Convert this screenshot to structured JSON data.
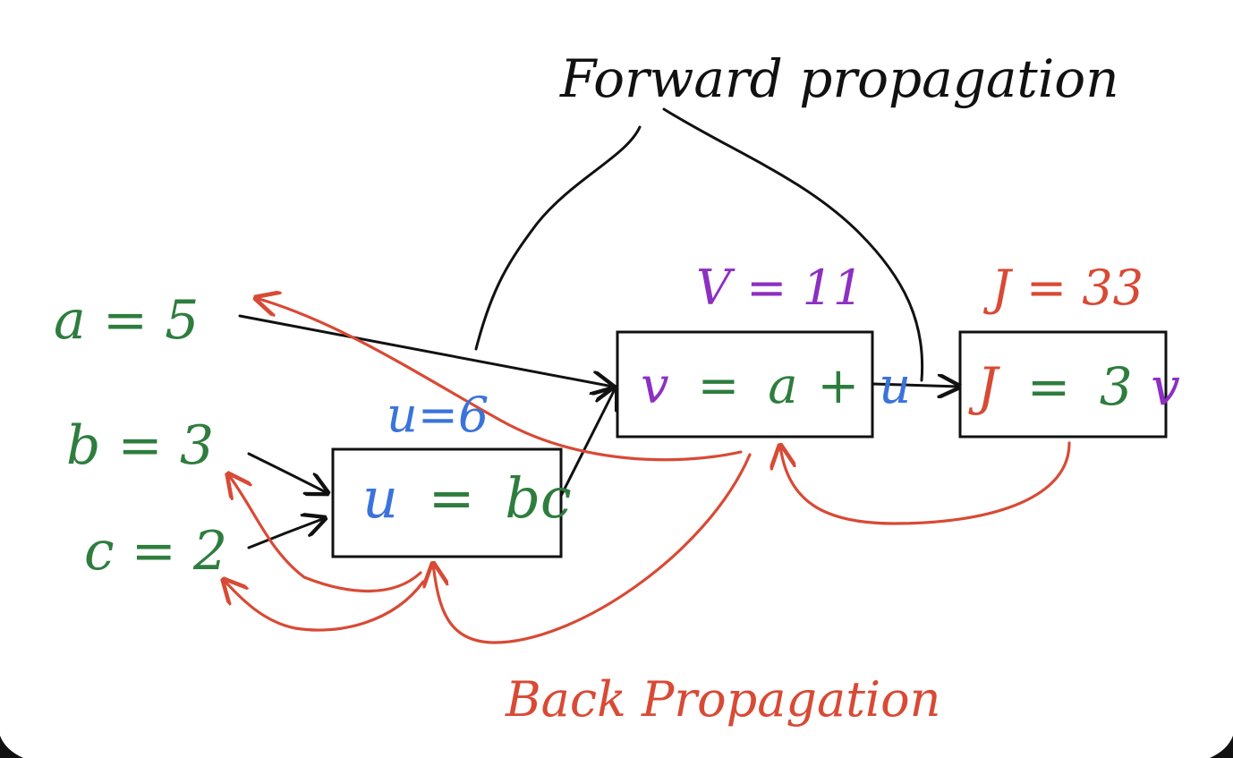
{
  "colors": {
    "black": "#111111",
    "green": "#2e7d3e",
    "blue": "#3b73db",
    "purple": "#8d2fc2",
    "red": "#d84a35"
  },
  "labels": {
    "forward_propagation": "Forward propagation",
    "back_propagation": "Back Propagation",
    "input_a": "a = 5",
    "input_b": "b = 3",
    "input_c": "c = 2",
    "u_value": "u=6",
    "v_value": "V = 11",
    "j_value": "J = 33"
  },
  "nodes": {
    "u": {
      "lhs": "u",
      "eq": "=",
      "rhs": "bc"
    },
    "v": {
      "lhs": "v",
      "eq": "=",
      "a": "a",
      "plus": "+",
      "u": "u"
    },
    "j": {
      "lhs": "J",
      "eq": "=",
      "coef": "3",
      "v": "v"
    }
  }
}
